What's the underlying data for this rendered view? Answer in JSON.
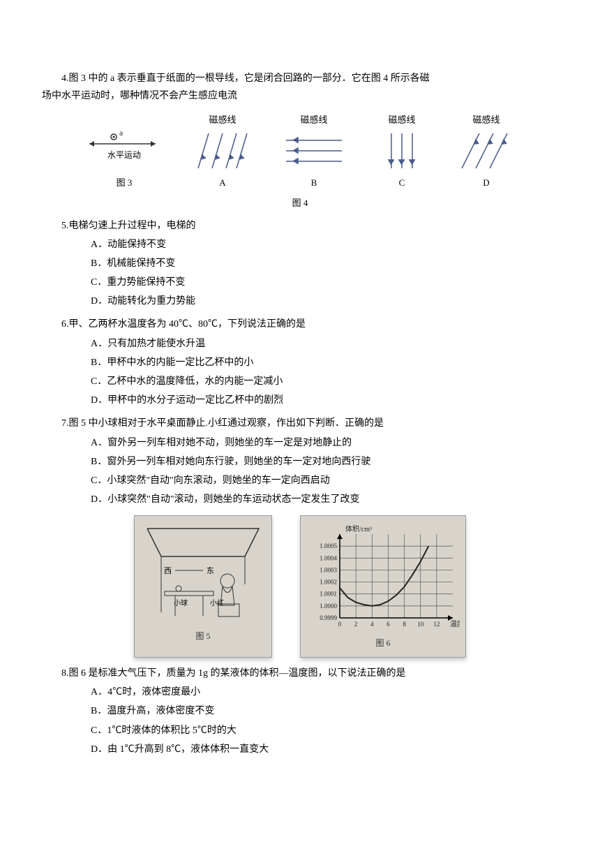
{
  "q4": {
    "text1": "4.图 3 中的 a 表示垂直于纸面的一根导线，它是闭合回路的一部分．它在图 4 所示各磁",
    "text2": "场中水平运动时，哪种情况不会产生感应电流",
    "fig3_label_a": "a",
    "fig3_label_move": "水平运动",
    "fig3_caption": "图 3",
    "fig4_caption": "图 4",
    "mag_label": "磁感线",
    "optA": "A",
    "optB": "B",
    "optC": "C",
    "optD": "D"
  },
  "q5": {
    "stem": "5.电梯匀速上升过程中，电梯的",
    "A": "A．动能保持不变",
    "B": "B．机械能保持不变",
    "C": "C．重力势能保持不变",
    "D": "D．动能转化为重力势能"
  },
  "q6": {
    "stem": "6.甲、乙两杯水温度各为 40℃、80℃，下列说法正确的是",
    "A": "A．只有加热才能使水升温",
    "B": "B．甲杯中水的内能一定比乙杯中的小",
    "C": "C．乙杯中水的温度降低，水的内能一定减小",
    "D": "D．甲杯中的水分子运动一定比乙杯中的剧烈"
  },
  "q7": {
    "stem": "7.图 5 中小球相对于水平桌面静止.小红通过观察，作出如下判断．正确的是",
    "A": "A．窗外另一列车相对她不动，则她坐的车一定是对地静止的",
    "B": "B．窗外另一列车相对她向东行驶，则她坐的车一定对地向西行驶",
    "C": "C．小球突然\"自动\"向东滚动，则她坐的车一定向西启动",
    "D": "D．小球突然\"自动\"滚动，则她坐的车运动状态一定发生了改变",
    "fig5_caption": "图 5",
    "fig5_ball": "小球",
    "fig5_girl": "小红",
    "fig5_west": "西",
    "fig5_east": "东",
    "fig6_caption": "图 6",
    "fig6_ylabel": "体积/cm³",
    "fig6_xlabel": "温度/℃",
    "chart": {
      "type": "line",
      "xlim": [
        0,
        14
      ],
      "ylim": [
        0.9999,
        1.0006
      ],
      "xticks": [
        0,
        2,
        4,
        6,
        8,
        10,
        12
      ],
      "yticks": [
        "0.9999",
        "1.0000",
        "1.0001",
        "1.0002",
        "1.0003",
        "1.0004",
        "1.0005"
      ],
      "points": [
        [
          0,
          1.00015
        ],
        [
          1,
          1.00007
        ],
        [
          2,
          1.00003
        ],
        [
          3,
          1.00001
        ],
        [
          4,
          1.0
        ],
        [
          5,
          1.00001
        ],
        [
          6,
          1.00004
        ],
        [
          7,
          1.00009
        ],
        [
          8,
          1.00016
        ],
        [
          9,
          1.00026
        ],
        [
          10,
          1.00037
        ],
        [
          11,
          1.0005
        ]
      ],
      "line_color": "#222222",
      "grid_color": "#555555",
      "bg_color": "#d8d4cc"
    }
  },
  "q8": {
    "stem": "8.图 6 是标准大气压下，质量为 1g 的某液体的体积—温度图，以下说法正确的是",
    "A": "A．4℃时，液体密度最小",
    "B": "B．温度升高，液体密度不变",
    "C": "C．1℃时液体的体积比 5℃时的大",
    "D": "D．由 1℃升高到 8℃，液体体积一直变大"
  }
}
